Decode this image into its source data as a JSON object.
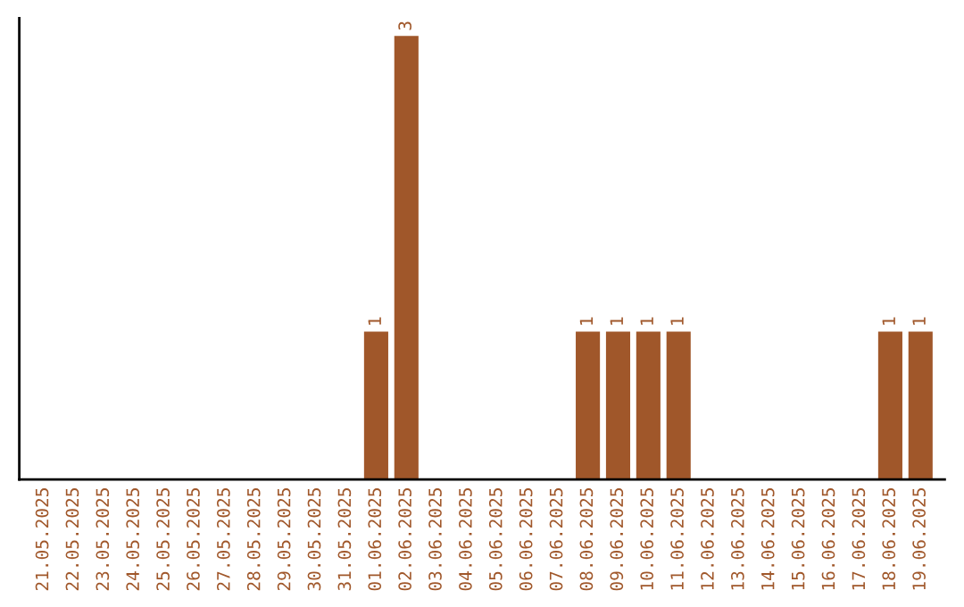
{
  "chart_data": {
    "type": "bar",
    "categories": [
      "21.05.2025",
      "22.05.2025",
      "23.05.2025",
      "24.05.2025",
      "25.05.2025",
      "26.05.2025",
      "27.05.2025",
      "28.05.2025",
      "29.05.2025",
      "30.05.2025",
      "31.05.2025",
      "01.06.2025",
      "02.06.2025",
      "03.06.2025",
      "04.06.2025",
      "05.06.2025",
      "06.06.2025",
      "07.06.2025",
      "08.06.2025",
      "09.06.2025",
      "10.06.2025",
      "11.06.2025",
      "12.06.2025",
      "13.06.2025",
      "14.06.2025",
      "15.06.2025",
      "16.06.2025",
      "17.06.2025",
      "18.06.2025",
      "19.06.2025"
    ],
    "values": [
      0,
      0,
      0,
      0,
      0,
      0,
      0,
      0,
      0,
      0,
      0,
      1,
      3,
      0,
      0,
      0,
      0,
      0,
      1,
      1,
      1,
      1,
      0,
      0,
      0,
      0,
      0,
      0,
      1,
      1
    ],
    "value_labels": [
      null,
      null,
      null,
      null,
      null,
      null,
      null,
      null,
      null,
      null,
      null,
      "1",
      "3",
      null,
      null,
      null,
      null,
      null,
      "1",
      "1",
      "1",
      "1",
      null,
      null,
      null,
      null,
      null,
      null,
      "1",
      "1"
    ],
    "color": "#a0572a",
    "tick_labels": "x",
    "grid": false,
    "legend": false
  }
}
